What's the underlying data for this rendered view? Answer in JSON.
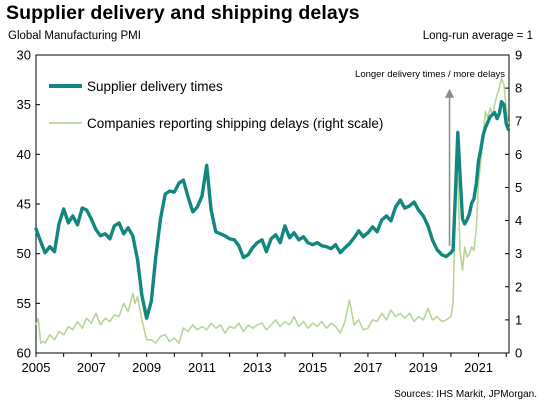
{
  "header": {
    "title": "Supplier delivery and shipping delays",
    "left_axis_title": "Global Manufacturing  PMI",
    "right_axis_title": "Long-run  average = 1",
    "source": "Sources: IHS Markit, JPMorgan."
  },
  "chart_data": {
    "type": "line",
    "title": "Supplier delivery and shipping delays",
    "y_left": {
      "label": "Global Manufacturing  PMI",
      "inverted": true,
      "range": [
        30,
        60
      ],
      "ticks": [
        30,
        35,
        40,
        45,
        50,
        55,
        60
      ]
    },
    "y_right": {
      "label": "Long-run  average = 1",
      "range": [
        0,
        9
      ],
      "ticks": [
        0,
        1,
        2,
        3,
        4,
        5,
        6,
        7,
        8,
        9
      ]
    },
    "x": {
      "range": [
        2005.0,
        2022.1
      ],
      "tick_labels": [
        "2005",
        "2007",
        "2009",
        "2011",
        "2013",
        "2015",
        "2017",
        "2019",
        "2021"
      ],
      "tick_values": [
        2005,
        2007,
        2009,
        2011,
        2013,
        2015,
        2017,
        2019,
        2021
      ]
    },
    "grid": false,
    "legend": {
      "position": "top-left"
    },
    "annotation": {
      "text": "Longer delivery times / more delays",
      "arrow_x": 2019.95,
      "arrow_from_pmi": 49.2,
      "arrow_to_pmi": 33.4
    },
    "series": [
      {
        "name": "Supplier delivery times",
        "axis": "left",
        "color": "#12877f",
        "points": [
          [
            2005.0,
            47.5
          ],
          [
            2005.17,
            48.8
          ],
          [
            2005.33,
            49.9
          ],
          [
            2005.5,
            49.3
          ],
          [
            2005.67,
            49.8
          ],
          [
            2005.83,
            47.0
          ],
          [
            2006.0,
            45.5
          ],
          [
            2006.17,
            46.9
          ],
          [
            2006.33,
            46.2
          ],
          [
            2006.5,
            47.1
          ],
          [
            2006.67,
            45.4
          ],
          [
            2006.83,
            45.6
          ],
          [
            2007.0,
            46.5
          ],
          [
            2007.17,
            47.6
          ],
          [
            2007.33,
            48.2
          ],
          [
            2007.5,
            48.0
          ],
          [
            2007.67,
            48.5
          ],
          [
            2007.83,
            47.2
          ],
          [
            2008.0,
            46.9
          ],
          [
            2008.17,
            48.0
          ],
          [
            2008.33,
            47.4
          ],
          [
            2008.5,
            48.2
          ],
          [
            2008.67,
            50.6
          ],
          [
            2008.83,
            54.2
          ],
          [
            2009.0,
            56.5
          ],
          [
            2009.17,
            54.8
          ],
          [
            2009.33,
            50.3
          ],
          [
            2009.5,
            46.5
          ],
          [
            2009.67,
            44.0
          ],
          [
            2009.83,
            43.7
          ],
          [
            2010.0,
            43.8
          ],
          [
            2010.17,
            42.9
          ],
          [
            2010.33,
            42.6
          ],
          [
            2010.5,
            44.3
          ],
          [
            2010.67,
            45.8
          ],
          [
            2010.83,
            45.3
          ],
          [
            2011.0,
            44.2
          ],
          [
            2011.17,
            41.1
          ],
          [
            2011.33,
            45.6
          ],
          [
            2011.5,
            47.8
          ],
          [
            2011.67,
            48.0
          ],
          [
            2011.83,
            48.2
          ],
          [
            2012.0,
            48.5
          ],
          [
            2012.17,
            48.6
          ],
          [
            2012.33,
            49.2
          ],
          [
            2012.5,
            50.4
          ],
          [
            2012.67,
            50.1
          ],
          [
            2012.83,
            49.4
          ],
          [
            2013.0,
            48.9
          ],
          [
            2013.17,
            48.6
          ],
          [
            2013.33,
            49.8
          ],
          [
            2013.5,
            48.5
          ],
          [
            2013.67,
            48.1
          ],
          [
            2013.83,
            48.9
          ],
          [
            2014.0,
            47.2
          ],
          [
            2014.17,
            48.4
          ],
          [
            2014.33,
            47.9
          ],
          [
            2014.5,
            48.6
          ],
          [
            2014.67,
            48.3
          ],
          [
            2014.83,
            48.9
          ],
          [
            2015.0,
            49.1
          ],
          [
            2015.17,
            48.9
          ],
          [
            2015.33,
            49.2
          ],
          [
            2015.5,
            49.3
          ],
          [
            2015.67,
            49.5
          ],
          [
            2015.83,
            49.1
          ],
          [
            2016.0,
            49.9
          ],
          [
            2016.17,
            49.4
          ],
          [
            2016.33,
            49.0
          ],
          [
            2016.5,
            48.4
          ],
          [
            2016.67,
            47.7
          ],
          [
            2016.83,
            48.3
          ],
          [
            2017.0,
            47.9
          ],
          [
            2017.17,
            47.3
          ],
          [
            2017.33,
            47.8
          ],
          [
            2017.5,
            46.6
          ],
          [
            2017.67,
            46.2
          ],
          [
            2017.83,
            46.7
          ],
          [
            2018.0,
            45.3
          ],
          [
            2018.17,
            44.6
          ],
          [
            2018.33,
            45.4
          ],
          [
            2018.5,
            45.2
          ],
          [
            2018.67,
            44.8
          ],
          [
            2018.83,
            45.6
          ],
          [
            2019.0,
            46.2
          ],
          [
            2019.17,
            47.2
          ],
          [
            2019.33,
            48.6
          ],
          [
            2019.5,
            49.6
          ],
          [
            2019.67,
            50.1
          ],
          [
            2019.83,
            50.3
          ],
          [
            2020.0,
            49.9
          ],
          [
            2020.08,
            49.6
          ],
          [
            2020.17,
            43.5
          ],
          [
            2020.25,
            37.8
          ],
          [
            2020.33,
            42.0
          ],
          [
            2020.42,
            46.5
          ],
          [
            2020.5,
            47.0
          ],
          [
            2020.58,
            46.6
          ],
          [
            2020.67,
            46.0
          ],
          [
            2020.75,
            44.9
          ],
          [
            2020.83,
            44.5
          ],
          [
            2020.92,
            42.9
          ],
          [
            2021.0,
            40.6
          ],
          [
            2021.08,
            39.5
          ],
          [
            2021.17,
            38.0
          ],
          [
            2021.25,
            37.3
          ],
          [
            2021.33,
            36.8
          ],
          [
            2021.42,
            36.2
          ],
          [
            2021.5,
            36.0
          ],
          [
            2021.58,
            35.8
          ],
          [
            2021.67,
            36.4
          ],
          [
            2021.75,
            35.9
          ],
          [
            2021.83,
            34.7
          ],
          [
            2021.92,
            35.0
          ],
          [
            2022.0,
            36.9
          ],
          [
            2022.08,
            37.5
          ]
        ]
      },
      {
        "name": "Companies reporting shipping delays (right scale)",
        "axis": "right",
        "color": "#b9d49b",
        "points": [
          [
            2005.0,
            0.85
          ],
          [
            2005.08,
            1.05
          ],
          [
            2005.17,
            0.3
          ],
          [
            2005.25,
            0.35
          ],
          [
            2005.33,
            0.3
          ],
          [
            2005.5,
            0.55
          ],
          [
            2005.67,
            0.4
          ],
          [
            2005.83,
            0.65
          ],
          [
            2006.0,
            0.55
          ],
          [
            2006.17,
            0.8
          ],
          [
            2006.33,
            0.7
          ],
          [
            2006.5,
            0.95
          ],
          [
            2006.67,
            0.75
          ],
          [
            2006.83,
            1.05
          ],
          [
            2007.0,
            0.9
          ],
          [
            2007.17,
            1.2
          ],
          [
            2007.33,
            0.85
          ],
          [
            2007.5,
            1.05
          ],
          [
            2007.67,
            0.95
          ],
          [
            2007.83,
            1.15
          ],
          [
            2008.0,
            1.1
          ],
          [
            2008.17,
            1.5
          ],
          [
            2008.33,
            1.25
          ],
          [
            2008.5,
            1.8
          ],
          [
            2008.58,
            1.5
          ],
          [
            2008.67,
            1.7
          ],
          [
            2008.83,
            1.0
          ],
          [
            2009.0,
            0.4
          ],
          [
            2009.17,
            0.4
          ],
          [
            2009.33,
            0.3
          ],
          [
            2009.5,
            0.5
          ],
          [
            2009.67,
            0.55
          ],
          [
            2009.83,
            0.35
          ],
          [
            2010.0,
            0.45
          ],
          [
            2010.17,
            0.3
          ],
          [
            2010.33,
            0.75
          ],
          [
            2010.5,
            0.65
          ],
          [
            2010.67,
            0.85
          ],
          [
            2010.83,
            0.7
          ],
          [
            2011.0,
            0.8
          ],
          [
            2011.17,
            0.7
          ],
          [
            2011.33,
            0.9
          ],
          [
            2011.5,
            0.75
          ],
          [
            2011.67,
            0.85
          ],
          [
            2011.83,
            0.6
          ],
          [
            2012.0,
            0.8
          ],
          [
            2012.17,
            0.75
          ],
          [
            2012.33,
            0.9
          ],
          [
            2012.5,
            0.65
          ],
          [
            2012.67,
            0.85
          ],
          [
            2012.83,
            0.75
          ],
          [
            2013.0,
            0.85
          ],
          [
            2013.17,
            0.9
          ],
          [
            2013.33,
            0.7
          ],
          [
            2013.5,
            0.85
          ],
          [
            2013.67,
            1.0
          ],
          [
            2013.83,
            0.8
          ],
          [
            2014.0,
            0.95
          ],
          [
            2014.17,
            0.85
          ],
          [
            2014.33,
            1.1
          ],
          [
            2014.5,
            0.8
          ],
          [
            2014.67,
            0.95
          ],
          [
            2014.83,
            0.75
          ],
          [
            2015.0,
            0.9
          ],
          [
            2015.17,
            0.8
          ],
          [
            2015.33,
            0.95
          ],
          [
            2015.5,
            0.75
          ],
          [
            2015.67,
            0.9
          ],
          [
            2015.83,
            0.8
          ],
          [
            2016.0,
            0.6
          ],
          [
            2016.17,
            0.95
          ],
          [
            2016.33,
            1.6
          ],
          [
            2016.5,
            0.85
          ],
          [
            2016.67,
            1.0
          ],
          [
            2016.83,
            0.7
          ],
          [
            2017.0,
            0.75
          ],
          [
            2017.17,
            1.0
          ],
          [
            2017.33,
            0.95
          ],
          [
            2017.5,
            1.2
          ],
          [
            2017.67,
            1.0
          ],
          [
            2017.83,
            1.3
          ],
          [
            2018.0,
            1.1
          ],
          [
            2018.17,
            1.2
          ],
          [
            2018.33,
            1.05
          ],
          [
            2018.5,
            1.2
          ],
          [
            2018.67,
            0.95
          ],
          [
            2018.83,
            1.1
          ],
          [
            2019.0,
            1.0
          ],
          [
            2019.17,
            1.35
          ],
          [
            2019.33,
            1.0
          ],
          [
            2019.5,
            1.1
          ],
          [
            2019.67,
            0.95
          ],
          [
            2019.83,
            1.0
          ],
          [
            2020.0,
            1.1
          ],
          [
            2020.08,
            1.5
          ],
          [
            2020.17,
            4.9
          ],
          [
            2020.25,
            5.3
          ],
          [
            2020.33,
            3.1
          ],
          [
            2020.42,
            2.5
          ],
          [
            2020.5,
            3.2
          ],
          [
            2020.58,
            2.9
          ],
          [
            2020.67,
            3.0
          ],
          [
            2020.75,
            3.2
          ],
          [
            2020.83,
            3.1
          ],
          [
            2020.92,
            3.8
          ],
          [
            2021.0,
            5.2
          ],
          [
            2021.08,
            5.8
          ],
          [
            2021.17,
            6.6
          ],
          [
            2021.25,
            7.3
          ],
          [
            2021.33,
            7.1
          ],
          [
            2021.42,
            7.4
          ],
          [
            2021.5,
            7.2
          ],
          [
            2021.58,
            7.5
          ],
          [
            2021.67,
            7.8
          ],
          [
            2021.75,
            8.0
          ],
          [
            2021.83,
            8.3
          ],
          [
            2021.92,
            8.1
          ],
          [
            2022.0,
            7.4
          ],
          [
            2022.08,
            6.9
          ]
        ]
      }
    ]
  }
}
